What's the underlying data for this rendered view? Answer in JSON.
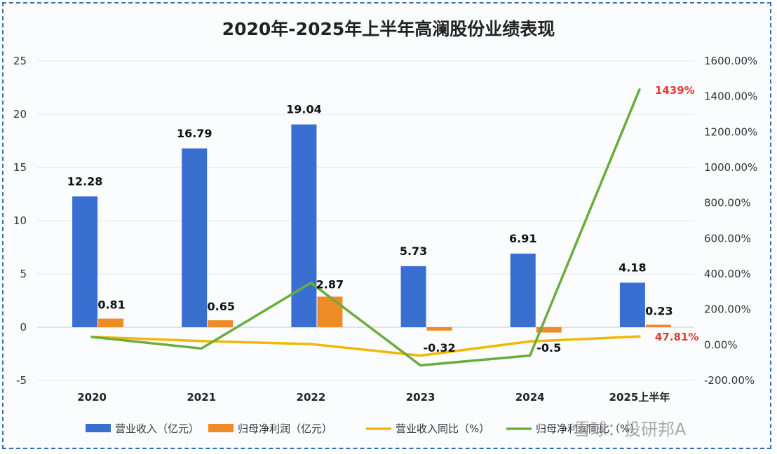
{
  "chart_data": {
    "type": "bar",
    "title": "2020年-2025年上半年高澜股份业绩表现",
    "categories": [
      "2020",
      "2021",
      "2022",
      "2023",
      "2024",
      "2025上半年"
    ],
    "left_axis": {
      "ylim": [
        -5,
        25
      ],
      "ticks": [
        "-5",
        "0",
        "5",
        "10",
        "15",
        "20",
        "25"
      ],
      "tick_values": [
        -5,
        0,
        5,
        10,
        15,
        20,
        25
      ]
    },
    "right_axis": {
      "ylim": [
        -200,
        1600
      ],
      "ticks": [
        "-200.00%",
        "0.00%",
        "200.00%",
        "400.00%",
        "600.00%",
        "800.00%",
        "1000.00%",
        "1200.00%",
        "1400.00%",
        "1600.00%"
      ],
      "tick_values": [
        -200,
        0,
        200,
        400,
        600,
        800,
        1000,
        1200,
        1400,
        1600
      ]
    },
    "series": [
      {
        "name": "营业收入（亿元）",
        "type": "bar",
        "axis": "left",
        "color": "#3a6fd2",
        "values": [
          12.28,
          16.79,
          19.04,
          5.73,
          6.91,
          4.18
        ],
        "labels": [
          "12.28",
          "16.79",
          "19.04",
          "5.73",
          "6.91",
          "4.18"
        ]
      },
      {
        "name": "归母净利润（亿元）",
        "type": "bar",
        "axis": "left",
        "color": "#f08a26",
        "values": [
          0.81,
          0.65,
          2.87,
          -0.32,
          -0.5,
          0.23
        ],
        "labels": [
          "0.81",
          "0.65",
          "2.87",
          "-0.32",
          "-0.5",
          "0.23"
        ]
      },
      {
        "name": "营业收入同比（%）",
        "type": "line",
        "axis": "right",
        "color": "#f2b705",
        "values": [
          45,
          22,
          5,
          -60,
          20,
          47.81
        ]
      },
      {
        "name": "归母净利润同比（%）",
        "type": "line",
        "axis": "right",
        "color": "#6aad3d",
        "values": [
          45,
          -20,
          350,
          -115,
          -60,
          1439
        ]
      }
    ],
    "annotations": [
      {
        "text": "1439%",
        "series": 3,
        "index": 5,
        "color": "#e53935"
      },
      {
        "text": "47.81%",
        "series": 2,
        "index": 5,
        "color": "#e53935"
      }
    ],
    "legend_position": "bottom",
    "grid": true
  },
  "watermark": {
    "text": "雪球：投研邦A"
  }
}
